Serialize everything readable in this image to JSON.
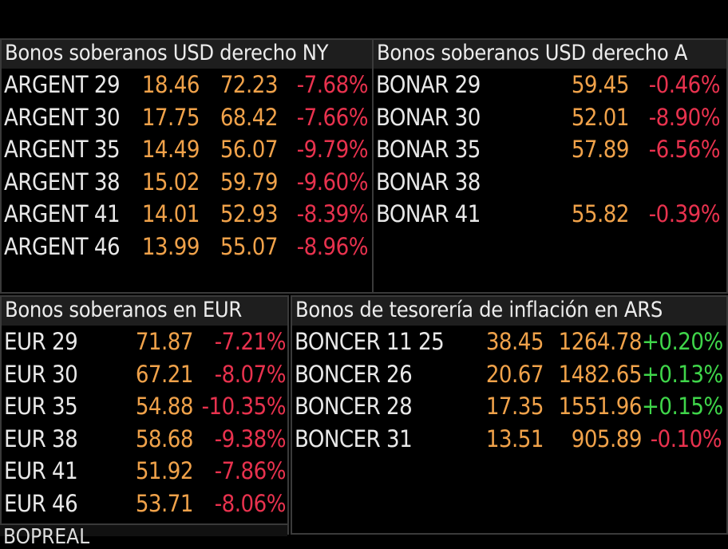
{
  "panels": {
    "usd_ny": {
      "title": "Bonos soberanos USD derecho NY",
      "rows": [
        {
          "name": "ARGENT 29",
          "yield": "18.46",
          "price": "72.23",
          "change": "-7.68%"
        },
        {
          "name": "ARGENT 30",
          "yield": "17.75",
          "price": "68.42",
          "change": "-7.66%"
        },
        {
          "name": "ARGENT 35",
          "yield": "14.49",
          "price": "56.07",
          "change": "-9.79%"
        },
        {
          "name": "ARGENT 38",
          "yield": "15.02",
          "price": "59.79",
          "change": "-9.60%"
        },
        {
          "name": "ARGENT 41",
          "yield": "14.01",
          "price": "52.93",
          "change": "-8.39%"
        },
        {
          "name": "ARGENT 46",
          "yield": "13.99",
          "price": "55.07",
          "change": "-8.96%"
        }
      ]
    },
    "usd_ar": {
      "title": "Bonos soberanos USD derecho A",
      "rows": [
        {
          "name": "BONAR 29",
          "price": "59.45",
          "change": "-0.46%"
        },
        {
          "name": "BONAR 30",
          "price": "52.01",
          "change": "-8.90%"
        },
        {
          "name": "BONAR 35",
          "price": "57.89",
          "change": "-6.56%"
        },
        {
          "name": "BONAR 38",
          "price": "",
          "change": ""
        },
        {
          "name": "BONAR 41",
          "price": "55.82",
          "change": "-0.39%"
        }
      ]
    },
    "eur": {
      "title": "Bonos soberanos en EUR",
      "rows": [
        {
          "name": "EUR 29",
          "price": "71.87",
          "change": "-7.21%"
        },
        {
          "name": "EUR 30",
          "price": "67.21",
          "change": "-8.07%"
        },
        {
          "name": "EUR 35",
          "price": "54.88",
          "change": "-10.35%"
        },
        {
          "name": "EUR 38",
          "price": "58.68",
          "change": "-9.38%"
        },
        {
          "name": "EUR 41",
          "price": "51.92",
          "change": "-7.86%"
        },
        {
          "name": "EUR 46",
          "price": "53.71",
          "change": "-8.06%"
        }
      ]
    },
    "ars_inflation": {
      "title": "Bonos de tesorería de inflación en ARS",
      "rows": [
        {
          "name": "BONCER 11 25",
          "yield": "38.45",
          "price": "1264.78",
          "change": "+0.20%"
        },
        {
          "name": "BONCER 26",
          "yield": "20.67",
          "price": "1482.65",
          "change": "+0.13%"
        },
        {
          "name": "BONCER 28",
          "yield": "17.35",
          "price": "1551.96",
          "change": "+0.15%"
        },
        {
          "name": "BONCER 31",
          "yield": "13.51",
          "price": "905.89",
          "change": "-0.10%"
        }
      ]
    },
    "bottom_stub": {
      "title": "BOPREAL"
    }
  },
  "colors": {
    "background": "#000000",
    "header_bg": "#1e1e1e",
    "label": "#e8e8e8",
    "value": "#f0a24a",
    "negative": "#e8324e",
    "positive": "#3fd64a",
    "border": "#3a3a3a"
  }
}
